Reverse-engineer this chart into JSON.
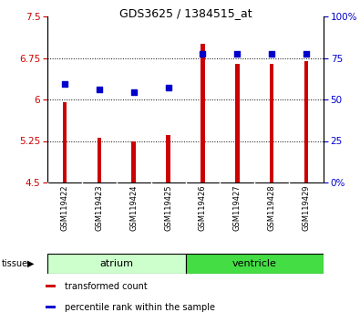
{
  "title": "GDS3625 / 1384515_at",
  "samples": [
    "GSM119422",
    "GSM119423",
    "GSM119424",
    "GSM119425",
    "GSM119426",
    "GSM119427",
    "GSM119428",
    "GSM119429"
  ],
  "bar_values": [
    5.95,
    5.3,
    5.25,
    5.35,
    7.0,
    6.65,
    6.65,
    6.7
  ],
  "dot_values": [
    6.28,
    6.18,
    6.13,
    6.22,
    6.82,
    6.82,
    6.82,
    6.82
  ],
  "bar_bottom": 4.5,
  "ylim_left": [
    4.5,
    7.5
  ],
  "ylim_right": [
    0,
    100
  ],
  "yticks_left": [
    4.5,
    5.25,
    6.0,
    6.75,
    7.5
  ],
  "yticks_right": [
    0,
    25,
    50,
    75,
    100
  ],
  "ytick_labels_left": [
    "4.5",
    "5.25",
    "6",
    "6.75",
    "7.5"
  ],
  "ytick_labels_right": [
    "0%",
    "25",
    "50",
    "75",
    "100%"
  ],
  "hlines": [
    5.25,
    6.0,
    6.75
  ],
  "bar_color": "#cc0000",
  "dot_color": "#0000cc",
  "bar_width": 0.12,
  "tissue_groups": [
    {
      "label": "atrium",
      "indices": [
        0,
        1,
        2,
        3
      ],
      "color": "#ccffcc"
    },
    {
      "label": "ventricle",
      "indices": [
        4,
        5,
        6,
        7
      ],
      "color": "#44dd44"
    }
  ],
  "legend_items": [
    {
      "color": "#cc0000",
      "label": "transformed count"
    },
    {
      "color": "#0000cc",
      "label": "percentile rank within the sample"
    }
  ],
  "bg_color": "#ffffff",
  "tick_label_color_left": "#cc0000",
  "tick_label_color_right": "#0000cc",
  "sample_bg": "#cccccc",
  "separator_color": "#ffffff",
  "spine_color": "#000000"
}
